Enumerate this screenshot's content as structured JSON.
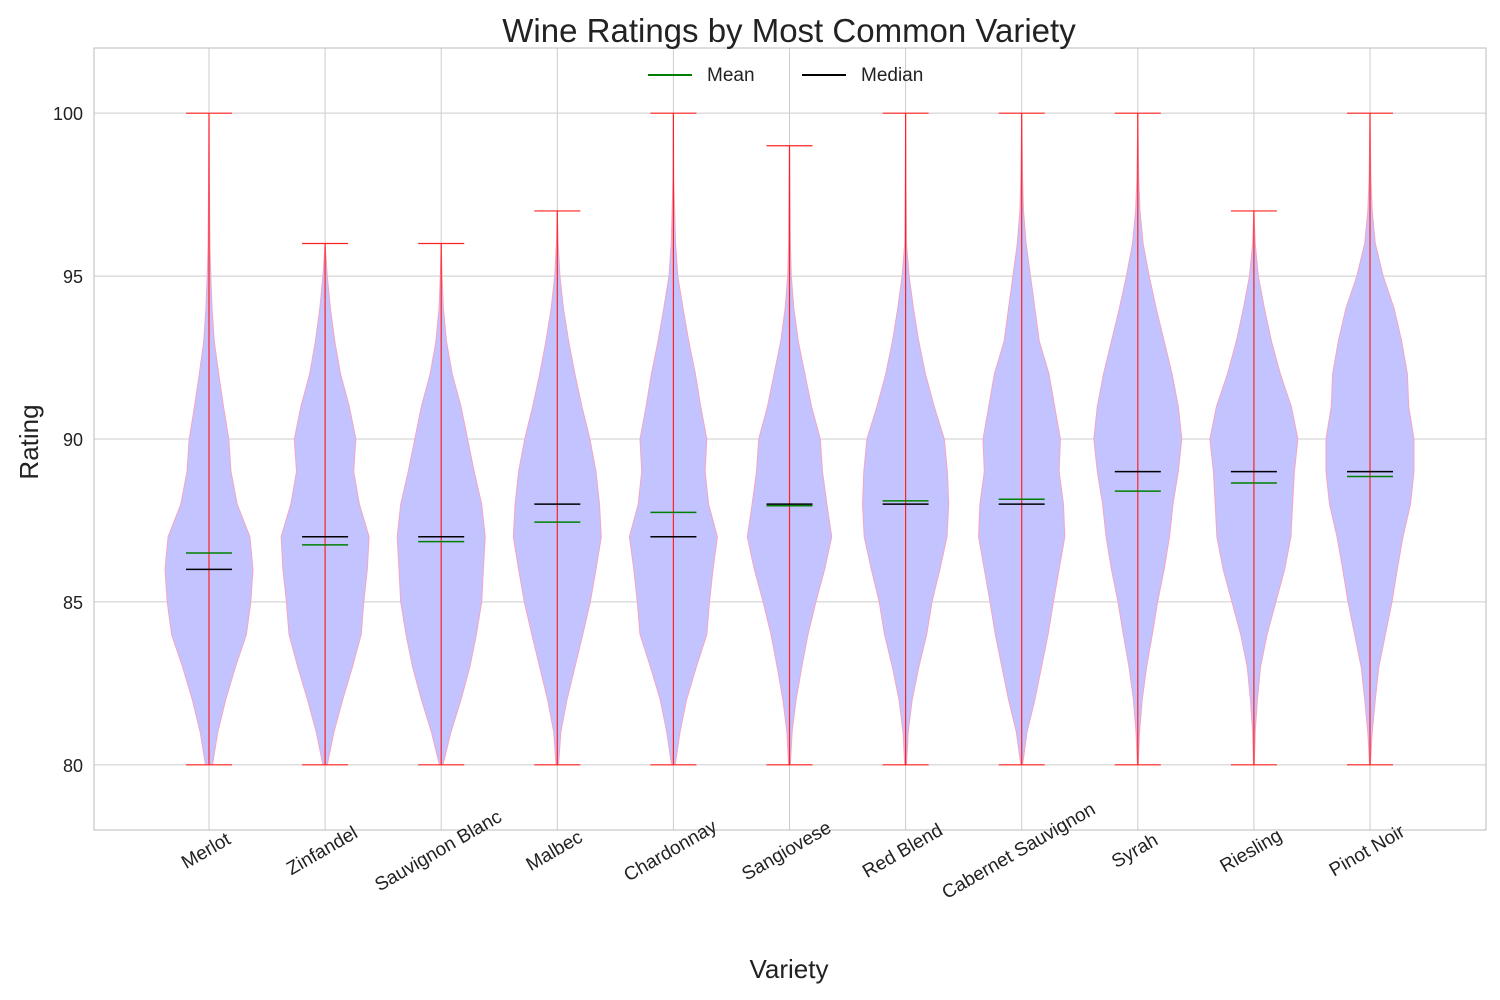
{
  "chart_data": {
    "type": "violin",
    "title": "Wine Ratings by Most Common Variety",
    "xlabel": "Variety",
    "ylabel": "Rating",
    "ylim": [
      78,
      102
    ],
    "yticks": [
      80,
      85,
      90,
      95,
      100
    ],
    "grid": true,
    "legend": {
      "placement": "top-center",
      "entries": [
        {
          "label": "Mean",
          "color": "#008000"
        },
        {
          "label": "Median",
          "color": "#000000"
        }
      ]
    },
    "colors": {
      "body_fill": "#c3c3ff",
      "body_edge": "#f4a6c4",
      "whisker": "#ff2222",
      "grid": "#cccccc",
      "frame": "#bbbbbb"
    },
    "categories": [
      "Merlot",
      "Zinfandel",
      "Sauvignon Blanc",
      "Malbec",
      "Chardonnay",
      "Sangiovese",
      "Red Blend",
      "Cabernet Sauvignon",
      "Syrah",
      "Riesling",
      "Pinot Noir"
    ],
    "series": [
      {
        "category": "Merlot",
        "min": 80,
        "max": 100,
        "mean": 86.5,
        "median": 86,
        "density": [
          [
            80,
            0.08
          ],
          [
            81,
            0.2
          ],
          [
            82,
            0.38
          ],
          [
            83,
            0.6
          ],
          [
            84,
            0.85
          ],
          [
            85,
            0.95
          ],
          [
            86,
            1.0
          ],
          [
            87,
            0.93
          ],
          [
            88,
            0.64
          ],
          [
            89,
            0.5
          ],
          [
            90,
            0.45
          ],
          [
            91,
            0.33
          ],
          [
            92,
            0.22
          ],
          [
            93,
            0.12
          ],
          [
            94,
            0.07
          ],
          [
            95,
            0.04
          ],
          [
            96,
            0.02
          ],
          [
            98,
            0.01
          ],
          [
            100,
            0.0
          ]
        ]
      },
      {
        "category": "Zinfandel",
        "min": 80,
        "max": 96,
        "mean": 86.75,
        "median": 87,
        "density": [
          [
            80,
            0.05
          ],
          [
            81,
            0.2
          ],
          [
            82,
            0.4
          ],
          [
            83,
            0.62
          ],
          [
            84,
            0.82
          ],
          [
            85,
            0.88
          ],
          [
            86,
            0.96
          ],
          [
            87,
            1.0
          ],
          [
            88,
            0.78
          ],
          [
            89,
            0.65
          ],
          [
            90,
            0.7
          ],
          [
            91,
            0.55
          ],
          [
            92,
            0.35
          ],
          [
            93,
            0.22
          ],
          [
            94,
            0.12
          ],
          [
            95,
            0.05
          ],
          [
            96,
            0.0
          ]
        ]
      },
      {
        "category": "Sauvignon Blanc",
        "min": 80,
        "max": 96,
        "mean": 86.85,
        "median": 87,
        "density": [
          [
            80,
            0.04
          ],
          [
            81,
            0.22
          ],
          [
            82,
            0.45
          ],
          [
            83,
            0.65
          ],
          [
            84,
            0.8
          ],
          [
            85,
            0.92
          ],
          [
            86,
            0.96
          ],
          [
            87,
            1.0
          ],
          [
            88,
            0.92
          ],
          [
            89,
            0.75
          ],
          [
            90,
            0.6
          ],
          [
            91,
            0.45
          ],
          [
            92,
            0.25
          ],
          [
            93,
            0.12
          ],
          [
            94,
            0.05
          ],
          [
            95,
            0.02
          ],
          [
            96,
            0.0
          ]
        ]
      },
      {
        "category": "Malbec",
        "min": 80,
        "max": 97,
        "mean": 87.45,
        "median": 88,
        "density": [
          [
            80,
            0.03
          ],
          [
            81,
            0.08
          ],
          [
            82,
            0.22
          ],
          [
            83,
            0.4
          ],
          [
            84,
            0.58
          ],
          [
            85,
            0.75
          ],
          [
            86,
            0.88
          ],
          [
            87,
            1.0
          ],
          [
            88,
            0.96
          ],
          [
            89,
            0.88
          ],
          [
            90,
            0.74
          ],
          [
            91,
            0.56
          ],
          [
            92,
            0.4
          ],
          [
            93,
            0.26
          ],
          [
            94,
            0.14
          ],
          [
            95,
            0.06
          ],
          [
            96,
            0.02
          ],
          [
            97,
            0.0
          ]
        ]
      },
      {
        "category": "Chardonnay",
        "min": 80,
        "max": 100,
        "mean": 87.75,
        "median": 87,
        "density": [
          [
            80,
            0.04
          ],
          [
            81,
            0.15
          ],
          [
            82,
            0.3
          ],
          [
            83,
            0.52
          ],
          [
            84,
            0.76
          ],
          [
            85,
            0.82
          ],
          [
            86,
            0.9
          ],
          [
            87,
            1.0
          ],
          [
            88,
            0.8
          ],
          [
            89,
            0.72
          ],
          [
            90,
            0.76
          ],
          [
            91,
            0.62
          ],
          [
            92,
            0.5
          ],
          [
            93,
            0.35
          ],
          [
            94,
            0.22
          ],
          [
            95,
            0.1
          ],
          [
            96,
            0.05
          ],
          [
            98,
            0.01
          ],
          [
            100,
            0.0
          ]
        ]
      },
      {
        "category": "Sangiovese",
        "min": 80,
        "max": 99,
        "mean": 87.95,
        "median": 88,
        "density": [
          [
            80,
            0.02
          ],
          [
            81,
            0.06
          ],
          [
            82,
            0.15
          ],
          [
            83,
            0.28
          ],
          [
            84,
            0.42
          ],
          [
            85,
            0.6
          ],
          [
            86,
            0.8
          ],
          [
            87,
            0.96
          ],
          [
            88,
            0.85
          ],
          [
            89,
            0.75
          ],
          [
            90,
            0.7
          ],
          [
            91,
            0.5
          ],
          [
            92,
            0.35
          ],
          [
            93,
            0.2
          ],
          [
            94,
            0.1
          ],
          [
            95,
            0.04
          ],
          [
            96,
            0.02
          ],
          [
            98,
            0.01
          ],
          [
            99,
            0.0
          ]
        ]
      },
      {
        "category": "Red Blend",
        "min": 80,
        "max": 100,
        "mean": 88.1,
        "median": 88,
        "density": [
          [
            80,
            0.02
          ],
          [
            81,
            0.06
          ],
          [
            82,
            0.15
          ],
          [
            83,
            0.3
          ],
          [
            84,
            0.48
          ],
          [
            85,
            0.6
          ],
          [
            86,
            0.78
          ],
          [
            87,
            0.94
          ],
          [
            88,
            0.98
          ],
          [
            89,
            0.95
          ],
          [
            90,
            0.88
          ],
          [
            91,
            0.65
          ],
          [
            92,
            0.45
          ],
          [
            93,
            0.3
          ],
          [
            94,
            0.18
          ],
          [
            95,
            0.08
          ],
          [
            96,
            0.02
          ],
          [
            98,
            0.01
          ],
          [
            100,
            0.0
          ]
        ]
      },
      {
        "category": "Cabernet Sauvignon",
        "min": 80,
        "max": 100,
        "mean": 88.15,
        "median": 88,
        "density": [
          [
            80,
            0.02
          ],
          [
            81,
            0.12
          ],
          [
            82,
            0.3
          ],
          [
            83,
            0.45
          ],
          [
            84,
            0.6
          ],
          [
            85,
            0.72
          ],
          [
            86,
            0.85
          ],
          [
            87,
            0.98
          ],
          [
            88,
            0.95
          ],
          [
            89,
            0.85
          ],
          [
            90,
            0.88
          ],
          [
            91,
            0.75
          ],
          [
            92,
            0.62
          ],
          [
            93,
            0.4
          ],
          [
            94,
            0.3
          ],
          [
            95,
            0.2
          ],
          [
            96,
            0.1
          ],
          [
            97,
            0.04
          ],
          [
            98,
            0.02
          ],
          [
            100,
            0.0
          ]
        ]
      },
      {
        "category": "Syrah",
        "min": 80,
        "max": 100,
        "mean": 88.4,
        "median": 89,
        "density": [
          [
            80,
            0.01
          ],
          [
            81,
            0.04
          ],
          [
            82,
            0.1
          ],
          [
            83,
            0.2
          ],
          [
            84,
            0.33
          ],
          [
            85,
            0.45
          ],
          [
            86,
            0.6
          ],
          [
            87,
            0.72
          ],
          [
            88,
            0.8
          ],
          [
            89,
            0.92
          ],
          [
            90,
            1.0
          ],
          [
            91,
            0.92
          ],
          [
            92,
            0.78
          ],
          [
            93,
            0.6
          ],
          [
            94,
            0.42
          ],
          [
            95,
            0.26
          ],
          [
            96,
            0.12
          ],
          [
            97,
            0.05
          ],
          [
            98,
            0.02
          ],
          [
            100,
            0.0
          ]
        ]
      },
      {
        "category": "Riesling",
        "min": 80,
        "max": 97,
        "mean": 88.65,
        "median": 89,
        "density": [
          [
            80,
            0.01
          ],
          [
            81,
            0.03
          ],
          [
            82,
            0.08
          ],
          [
            83,
            0.15
          ],
          [
            84,
            0.3
          ],
          [
            85,
            0.5
          ],
          [
            86,
            0.7
          ],
          [
            87,
            0.84
          ],
          [
            88,
            0.88
          ],
          [
            89,
            0.92
          ],
          [
            90,
            1.0
          ],
          [
            91,
            0.85
          ],
          [
            92,
            0.6
          ],
          [
            93,
            0.4
          ],
          [
            94,
            0.24
          ],
          [
            95,
            0.1
          ],
          [
            96,
            0.03
          ],
          [
            97,
            0.0
          ]
        ]
      },
      {
        "category": "Pinot Noir",
        "min": 80,
        "max": 100,
        "mean": 88.85,
        "median": 89,
        "density": [
          [
            80,
            0.01
          ],
          [
            81,
            0.05
          ],
          [
            82,
            0.12
          ],
          [
            83,
            0.2
          ],
          [
            84,
            0.35
          ],
          [
            85,
            0.5
          ],
          [
            86,
            0.62
          ],
          [
            87,
            0.75
          ],
          [
            88,
            0.92
          ],
          [
            89,
            1.0
          ],
          [
            90,
            1.0
          ],
          [
            91,
            0.88
          ],
          [
            92,
            0.85
          ],
          [
            93,
            0.72
          ],
          [
            94,
            0.55
          ],
          [
            95,
            0.3
          ],
          [
            96,
            0.12
          ],
          [
            97,
            0.05
          ],
          [
            98,
            0.02
          ],
          [
            100,
            0.0
          ]
        ]
      }
    ]
  }
}
